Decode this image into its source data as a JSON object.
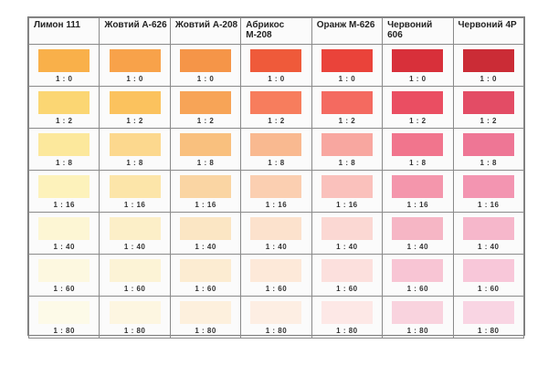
{
  "columns": [
    "Лимон 111",
    "Жовтий А-626",
    "Жовтий А-208",
    "Абрикос М-208",
    "Оранж М-626",
    "Червоний 606",
    "Червоний 4Р"
  ],
  "ratios": [
    "1 : 0",
    "1 : 2",
    "1 : 8",
    "1 : 16",
    "1 : 40",
    "1 : 60",
    "1 : 80"
  ],
  "swatch_colors": [
    [
      "#f9b04a",
      "#f8a24a",
      "#f59548",
      "#ef5a3a",
      "#ea433a",
      "#d8303a",
      "#cb2c36"
    ],
    [
      "#fbd673",
      "#fbc25e",
      "#f7a457",
      "#f77d5d",
      "#f46a60",
      "#ea4e62",
      "#e34c65"
    ],
    [
      "#fce89c",
      "#fcd88e",
      "#f9c07e",
      "#f9b990",
      "#f8a7a0",
      "#f1758d",
      "#ee7695"
    ],
    [
      "#fdf2bb",
      "#fce5a9",
      "#fad5a3",
      "#fbcfb1",
      "#fac1bc",
      "#f496ac",
      "#f395b1"
    ],
    [
      "#fdf6d4",
      "#fcefc8",
      "#fbe6c4",
      "#fce2cd",
      "#fbd8d3",
      "#f6b6c5",
      "#f6b7cb"
    ],
    [
      "#fdf8e0",
      "#fcf3d6",
      "#fcecd2",
      "#fde9d9",
      "#fce0dd",
      "#f8c5d4",
      "#f8c7d9"
    ],
    [
      "#fdfae8",
      "#fdf6e1",
      "#fdf0dd",
      "#fdeee3",
      "#fde8e6",
      "#f9d3de",
      "#f9d5e3"
    ]
  ]
}
